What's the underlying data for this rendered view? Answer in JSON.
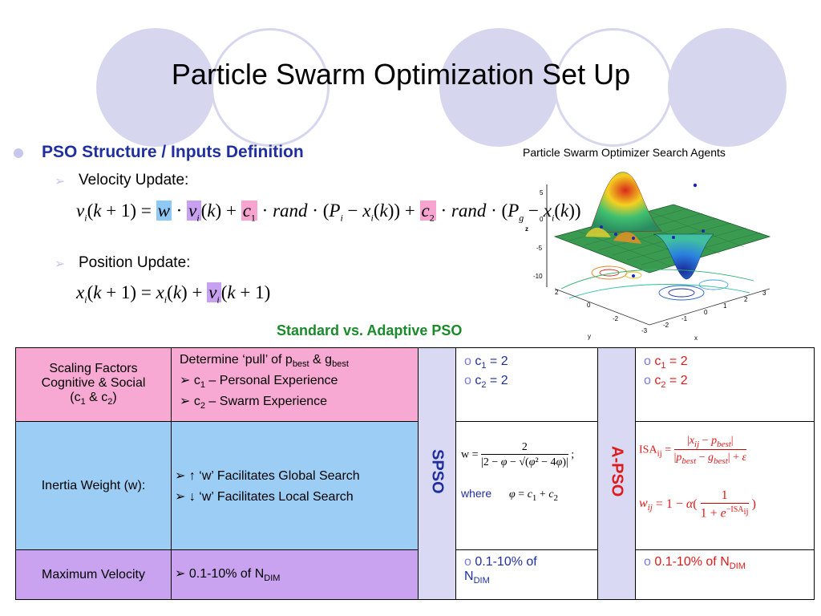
{
  "slide": {
    "title": "Particle Swarm Optimization Set Up",
    "section_heading": "PSO Structure / Inputs Definition",
    "velocity_label": "Velocity Update:",
    "position_label": "Position Update:",
    "compare_title": "Standard vs. Adaptive PSO"
  },
  "colors": {
    "heading_blue": "#1f2f9f",
    "green_title": "#1a8a2a",
    "pink": "#f7a8d3",
    "blue": "#9ccdf5",
    "purple": "#c9a3ef",
    "lavender": "#d9d9f3",
    "red": "#e01a1a"
  },
  "chart_data": {
    "type": "surface",
    "title": "Particle Swarm Optimizer Search Agents",
    "xlabel": "x",
    "ylabel": "y",
    "zlabel": "z",
    "x_ticks": [
      "-3",
      "-2",
      "-1",
      "0",
      "1",
      "2",
      "3"
    ],
    "y_ticks": [
      "-2",
      "0",
      "2"
    ],
    "z_ticks": [
      "5",
      "0",
      "-5",
      "-10"
    ],
    "xlim": [
      -3,
      3
    ],
    "ylim": [
      -3,
      3
    ],
    "zlim": [
      -10,
      5
    ]
  },
  "table": {
    "rows": [
      {
        "param_lines": [
          "Scaling Factors",
          "Cognitive & Social"
        ],
        "param_sym": "(c",
        "desc_intro": "Determine ‘pull’ of p",
        "desc_items": [
          "c",
          "c"
        ],
        "desc_item_texts": [
          " – Personal Experience",
          " – Swarm Experience"
        ],
        "spso": [
          "c",
          "c"
        ],
        "apso": [
          "c",
          "c"
        ]
      },
      {
        "param": "Inertia Weight (w):",
        "desc_items": [
          "↑ ‘w’ Facilitates Global Search",
          "↓ ‘w’ Facilitates Local Search"
        ],
        "spso_where": "where"
      },
      {
        "param": "Maximum Velocity",
        "desc": "0.1-10% of N",
        "spso": "0.1-10% of",
        "apso": "0.1-10% of N"
      }
    ],
    "spso_label": "SPSO",
    "apso_label": "A-PSO"
  }
}
